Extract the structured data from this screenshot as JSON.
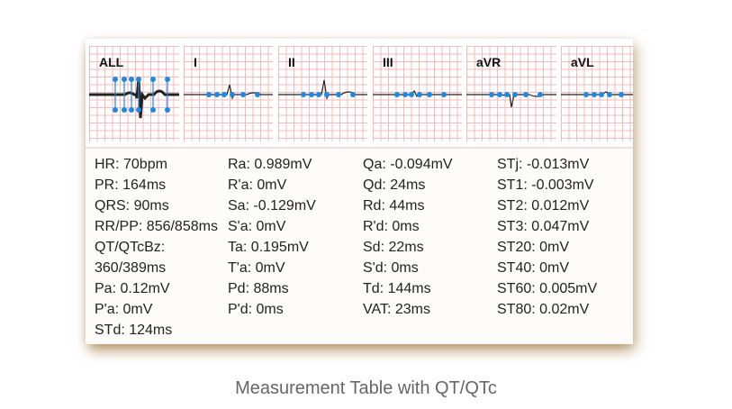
{
  "leads": [
    {
      "label": "ALL"
    },
    {
      "label": "I"
    },
    {
      "label": "II"
    },
    {
      "label": "III"
    },
    {
      "label": "aVR"
    },
    {
      "label": "aVL"
    }
  ],
  "colors": {
    "grid": "#f6b9b9",
    "marker": "#1e88e5",
    "trace": "#222222"
  },
  "measurements": [
    [
      "HR: 70bpm",
      "PR: 164ms",
      "QRS: 90ms",
      "RR/PP: 856/858ms",
      "QT/QTcBz: 360/389ms",
      "Pa: 0.12mV",
      "P'a: 0mV",
      "STd: 124ms"
    ],
    [
      "Ra: 0.989mV",
      "R'a: 0mV",
      "Sa: -0.129mV",
      "S'a: 0mV",
      "Ta: 0.195mV",
      "T'a: 0mV",
      "Pd: 88ms",
      "P'd: 0ms"
    ],
    [
      "Qa: -0.094mV",
      "Qd: 24ms",
      "Rd: 44ms",
      "R'd: 0ms",
      "Sd: 22ms",
      "S'd: 0ms",
      "Td: 144ms",
      "VAT: 23ms"
    ],
    [
      "STj: -0.013mV",
      "ST1: -0.003mV",
      "ST2: 0.012mV",
      "ST3: 0.047mV",
      "ST20: 0mV",
      "ST40: 0mV",
      "ST60: 0.005mV",
      "ST80: 0.02mV"
    ]
  ],
  "caption": "Measurement Table with QT/QTc"
}
